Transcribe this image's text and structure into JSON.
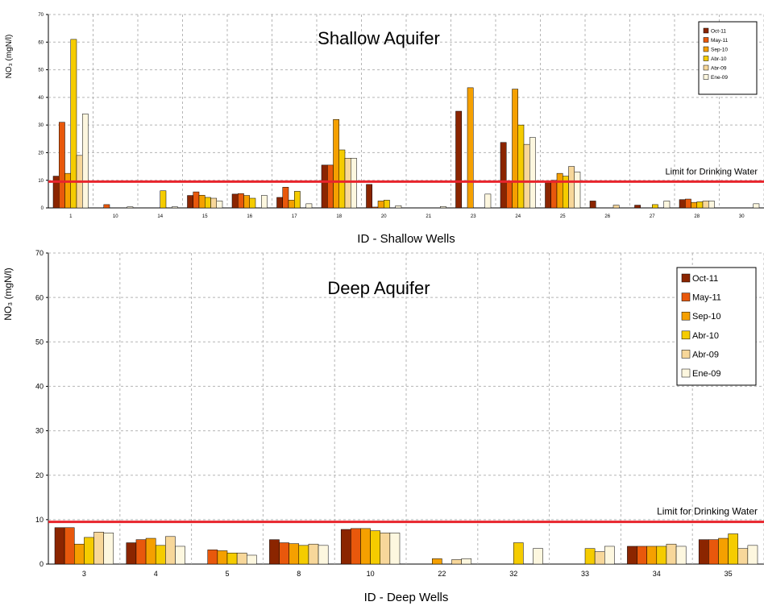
{
  "colors": {
    "Oct-11": "#8b2500",
    "May-11": "#e8580c",
    "Sep-10": "#f5a000",
    "Abr-10": "#f5cc00",
    "Abr-09": "#f7d79a",
    "Ene-09": "#fdf7df",
    "limit": "#e8242c",
    "grid": "#b5b5b5"
  },
  "chart_data": [
    {
      "type": "bar",
      "title": "Shallow Aquifer",
      "xlabel": "ID - Shallow Wells",
      "ylabel": "NO₃ (mgN/l)",
      "ylim": [
        0,
        70
      ],
      "yticks": [
        "0",
        "10",
        "20",
        "30",
        "40",
        "50",
        "60",
        "70"
      ],
      "grid": true,
      "legend_position": "top-right",
      "categories": [
        "1",
        "10",
        "14",
        "15",
        "16",
        "17",
        "18",
        "20",
        "21",
        "23",
        "24",
        "25",
        "26",
        "27",
        "28",
        "30"
      ],
      "series": [
        {
          "name": "Oct-11",
          "values": [
            11.5,
            0,
            0,
            4.5,
            5,
            3.8,
            15.5,
            8.5,
            0,
            35,
            23.7,
            9.5,
            2.5,
            1,
            3,
            0
          ]
        },
        {
          "name": "May-11",
          "values": [
            31,
            1.2,
            0,
            5.8,
            5.2,
            7.5,
            15.5,
            0.3,
            0,
            0,
            9.5,
            10,
            0,
            0,
            3.2,
            0
          ]
        },
        {
          "name": "Sep-10",
          "values": [
            12.5,
            0,
            0,
            4.6,
            4.5,
            2.8,
            32,
            2.5,
            0,
            43.5,
            43,
            12.5,
            0,
            0,
            2,
            0
          ]
        },
        {
          "name": "Abr-10",
          "values": [
            61,
            0,
            6.2,
            3.8,
            3.5,
            6,
            21,
            2.8,
            0,
            0,
            30,
            11.5,
            0,
            1.2,
            2.2,
            0
          ]
        },
        {
          "name": "Abr-09",
          "values": [
            19,
            0,
            0,
            3.5,
            0,
            0,
            18,
            0,
            0,
            0,
            23,
            15,
            1,
            0,
            2.5,
            0
          ]
        },
        {
          "name": "Ene-09",
          "values": [
            34,
            0.4,
            0.4,
            2.5,
            4.5,
            1.5,
            18,
            0.8,
            0.5,
            5,
            25.5,
            13,
            0,
            2.5,
            2.5,
            1.5
          ]
        }
      ],
      "limit": {
        "label": "Limit for Drinking Water",
        "value": 9.5
      }
    },
    {
      "type": "bar",
      "title": "Deep Aquifer",
      "xlabel": "ID - Deep Wells",
      "ylabel": "NO₃ (mgN/l)",
      "ylim": [
        0,
        70
      ],
      "yticks": [
        "0",
        "10",
        "20",
        "30",
        "40",
        "50",
        "60",
        "70"
      ],
      "grid": true,
      "legend_position": "top-right",
      "categories": [
        "3",
        "4",
        "5",
        "8",
        "10",
        "22",
        "32",
        "33",
        "34",
        "35"
      ],
      "series": [
        {
          "name": "Oct-11",
          "values": [
            8.2,
            4.8,
            0,
            5.5,
            7.8,
            0,
            0,
            0,
            4,
            5.5
          ]
        },
        {
          "name": "May-11",
          "values": [
            8.2,
            5.5,
            3.2,
            4.8,
            8,
            0,
            0,
            0,
            4,
            5.5
          ]
        },
        {
          "name": "Sep-10",
          "values": [
            4.5,
            5.8,
            3,
            4.6,
            8,
            1.2,
            0,
            0,
            4,
            5.8
          ]
        },
        {
          "name": "Abr-10",
          "values": [
            6,
            4.2,
            2.5,
            4.2,
            7.5,
            0,
            4.8,
            3.5,
            4,
            6.8
          ]
        },
        {
          "name": "Abr-09",
          "values": [
            7.2,
            6.2,
            2.5,
            4.5,
            7,
            1,
            0,
            2.8,
            4.5,
            3.5
          ]
        },
        {
          "name": "Ene-09",
          "values": [
            7,
            4,
            2,
            4.2,
            7,
            1.2,
            3.5,
            4,
            4,
            4.2
          ]
        }
      ],
      "limit": {
        "label": "Limit for Drinking Water",
        "value": 9.5
      }
    }
  ]
}
